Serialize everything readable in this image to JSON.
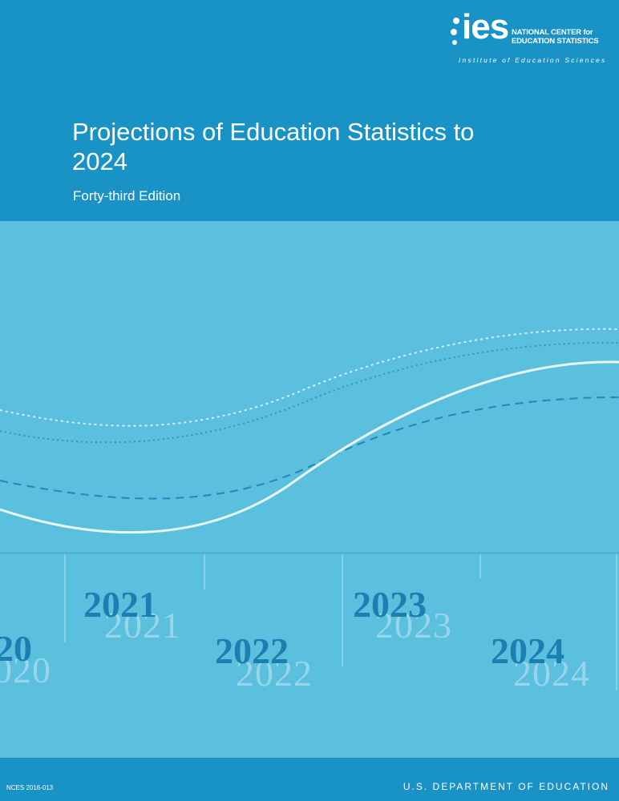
{
  "logo": {
    "name": "ies",
    "org_line1": "NATIONAL CENTER for",
    "org_line2": "EDUCATION STATISTICS",
    "institute": "Institute of Education Sciences"
  },
  "title": "Projections of Education Statistics to 2024",
  "edition": "Forty-third Edition",
  "years": [
    {
      "label": "20",
      "ghost": "020"
    },
    {
      "label": "2021",
      "ghost": "2021"
    },
    {
      "label": "2022",
      "ghost": "2022"
    },
    {
      "label": "2023",
      "ghost": "2023"
    },
    {
      "label": "2024",
      "ghost": "2024"
    }
  ],
  "footer": {
    "report_number": "NCES 2016-013",
    "department": "U.S. DEPARTMENT OF EDUCATION"
  },
  "colors": {
    "header_blue": "#1992c6",
    "body_light_blue": "#5bbfde",
    "year_dark": "#1b7fb1",
    "year_ghost": "#97d6ea"
  }
}
